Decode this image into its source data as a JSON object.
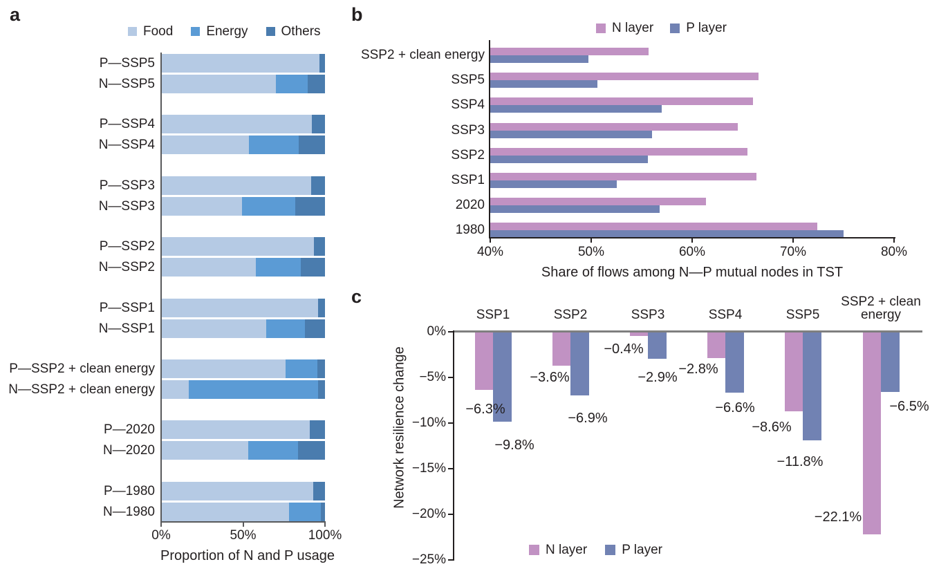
{
  "chart_data": [
    {
      "panel_letter": "a",
      "type": "bar",
      "orientation": "horizontal",
      "stacked": true,
      "xlabel": "Proportion of N and P usage",
      "x_ticks": [
        "0%",
        "50%",
        "100%"
      ],
      "xlim": [
        0,
        100
      ],
      "legend_position": "top",
      "legend": [
        {
          "label": "Food",
          "color": "#b5cae4"
        },
        {
          "label": "Energy",
          "color": "#5b9bd5"
        },
        {
          "label": "Others",
          "color": "#4a7cae"
        }
      ],
      "categories": [
        "P—SSP5",
        "N—SSP5",
        "P—SSP4",
        "N—SSP4",
        "P—SSP3",
        "N—SSP3",
        "P—SSP2",
        "N—SSP2",
        "P—SSP1",
        "N—SSP1",
        "P—SSP2 + clean energy",
        "N—SSP2 + clean energy",
        "P—2020",
        "N—2020",
        "P—1980",
        "N—1980"
      ],
      "series": [
        {
          "name": "Food",
          "color": "#b5cae4",
          "values": [
            96.7,
            70.0,
            92.0,
            53.5,
            91.5,
            49.0,
            93.4,
            57.6,
            95.8,
            64.0,
            76.0,
            16.4,
            90.8,
            53.1,
            92.7,
            78.1
          ]
        },
        {
          "name": "Energy",
          "color": "#5b9bd5",
          "values": [
            0,
            19.3,
            0,
            30.3,
            0,
            32.7,
            0,
            27.6,
            0,
            23.6,
            19.5,
            79.4,
            0,
            30.4,
            0,
            19.5
          ]
        },
        {
          "name": "Others",
          "color": "#4a7cae",
          "values": [
            3.3,
            10.7,
            8.0,
            16.2,
            8.5,
            18.3,
            6.6,
            14.8,
            4.2,
            12.4,
            4.5,
            4.2,
            9.2,
            16.5,
            7.3,
            2.4
          ]
        }
      ]
    },
    {
      "panel_letter": "b",
      "type": "bar",
      "orientation": "horizontal",
      "stacked": false,
      "xlabel": "Share of flows among N—P mutual nodes in TST",
      "x_ticks": [
        "40%",
        "50%",
        "60%",
        "70%",
        "80%"
      ],
      "xlim": [
        40,
        80
      ],
      "legend_position": "top",
      "legend": [
        {
          "label": "N layer",
          "color": "#c192c3"
        },
        {
          "label": "P layer",
          "color": "#7182b3"
        }
      ],
      "categories": [
        "SSP2 + clean energy",
        "SSP5",
        "SSP4",
        "SSP3",
        "SSP2",
        "SSP1",
        "2020",
        "1980"
      ],
      "series": [
        {
          "name": "N layer",
          "color": "#c192c3",
          "values": [
            55.7,
            66.6,
            66.0,
            64.5,
            65.5,
            66.4,
            61.4,
            72.4
          ]
        },
        {
          "name": "P layer",
          "color": "#7182b3",
          "values": [
            49.7,
            50.6,
            57.0,
            56.0,
            55.6,
            52.5,
            56.8,
            75.0
          ]
        }
      ]
    },
    {
      "panel_letter": "c",
      "type": "bar",
      "orientation": "vertical",
      "stacked": false,
      "ylabel": "Network resilience change",
      "y_ticks": [
        "0%",
        "−5%",
        "−10%",
        "−15%",
        "−20%",
        "−25%"
      ],
      "ylim": [
        -25,
        0
      ],
      "legend_position": "bottom",
      "legend": [
        {
          "label": "N layer",
          "color": "#c192c3"
        },
        {
          "label": "P layer",
          "color": "#7182b3"
        }
      ],
      "categories": [
        "SSP1",
        "SSP2",
        "SSP3",
        "SSP4",
        "SSP5",
        "SSP2 + clean energy"
      ],
      "series": [
        {
          "name": "N layer",
          "color": "#c192c3",
          "values": [
            -6.3,
            -3.6,
            -0.4,
            -2.8,
            -8.6,
            -22.1
          ],
          "data_labels": [
            "−6.3%",
            "−3.6%",
            "−0.4%",
            "−2.8%",
            "−8.6%",
            "−22.1%"
          ]
        },
        {
          "name": "P layer",
          "color": "#7182b3",
          "values": [
            -9.8,
            -6.9,
            -2.9,
            -6.6,
            -11.8,
            -6.5
          ],
          "data_labels": [
            "−9.8%",
            "−6.9%",
            "−2.9%",
            "−6.6%",
            "−11.8%",
            "−6.5%"
          ]
        }
      ]
    }
  ]
}
